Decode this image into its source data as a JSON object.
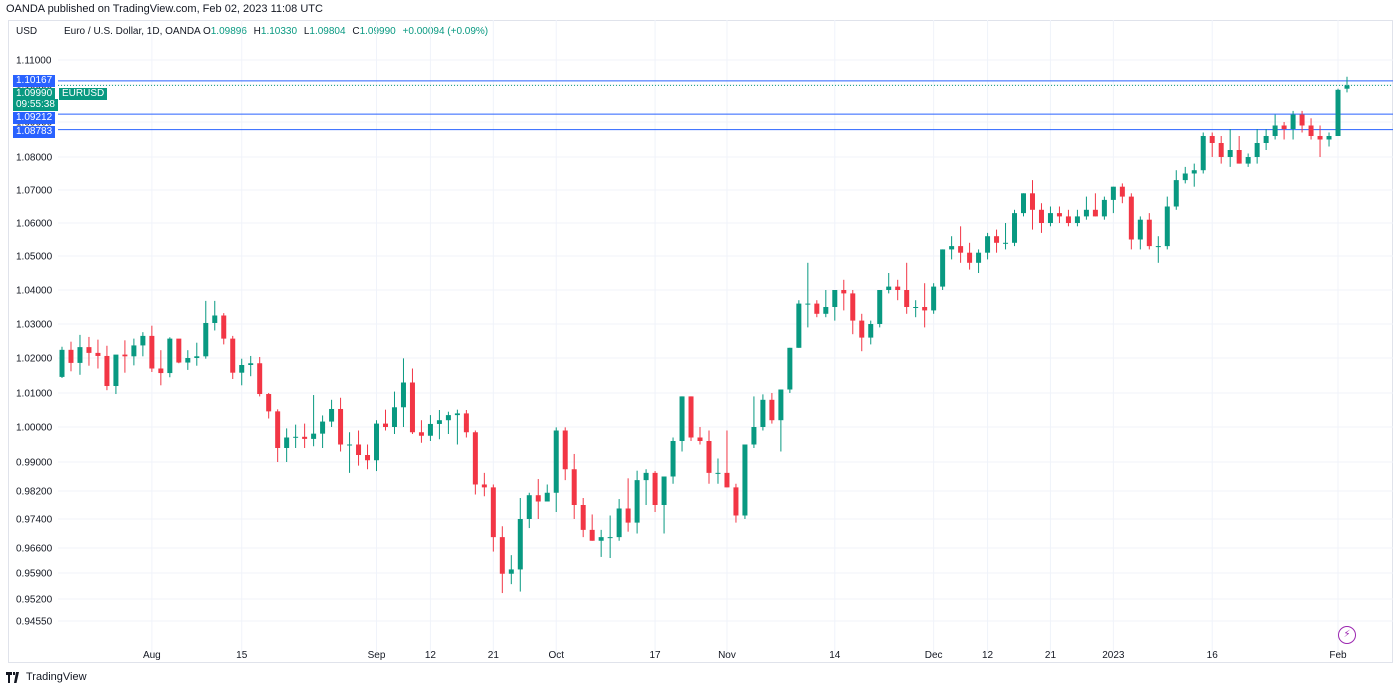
{
  "header": {
    "published": "OANDA published on TradingView.com, Feb 02, 2023 11:08 UTC",
    "currency": "USD"
  },
  "legend": {
    "symbol": "Euro / U.S. Dollar, 1D, OANDA",
    "open_k": "O",
    "open_v": "1.09896",
    "high_k": "H",
    "high_v": "1.10330",
    "low_k": "L",
    "low_v": "1.09804",
    "close_k": "C",
    "close_v": "1.09990",
    "change_v": "+0.00094 (+0.09%)"
  },
  "price_tags": {
    "level1": "1.10167",
    "current": "1.09990",
    "countdown": "09:55:38",
    "symbol_tag": "EURUSD",
    "level2": "1.09212",
    "level3": "1.08783"
  },
  "footer": {
    "brand": "TradingView"
  },
  "colors": {
    "up": "#089981",
    "down": "#f23645",
    "level_line": "#2962ff",
    "grid": "#f0f3fa"
  },
  "chart_data": {
    "type": "candlestick",
    "y_ticks": [
      "1.11000",
      "1.10000",
      "1.09000",
      "1.08000",
      "1.07000",
      "1.06000",
      "1.05000",
      "1.04000",
      "1.03000",
      "1.02000",
      "1.01000",
      "1.00000",
      "0.99000",
      "0.98200",
      "0.97400",
      "0.96600",
      "0.95900",
      "0.95200",
      "0.94550"
    ],
    "x_labels": [
      {
        "label": "Aug",
        "index": 10
      },
      {
        "label": "15",
        "index": 20
      },
      {
        "label": "Sep",
        "index": 35
      },
      {
        "label": "12",
        "index": 41
      },
      {
        "label": "21",
        "index": 48
      },
      {
        "label": "Oct",
        "index": 55
      },
      {
        "label": "17",
        "index": 66
      },
      {
        "label": "Nov",
        "index": 74
      },
      {
        "label": "14",
        "index": 86
      },
      {
        "label": "Dec",
        "index": 97
      },
      {
        "label": "12",
        "index": 103
      },
      {
        "label": "21",
        "index": 110
      },
      {
        "label": "2023",
        "index": 117
      },
      {
        "label": "16",
        "index": 128
      },
      {
        "label": "Feb",
        "index": 142
      }
    ],
    "horizontal_levels": [
      1.10167,
      1.09212,
      1.08783
    ],
    "current_price": 1.0999,
    "ohlc": [
      [
        1.0146,
        1.0233,
        1.0143,
        1.0224
      ],
      [
        1.0224,
        1.0248,
        1.0162,
        1.0186
      ],
      [
        1.0186,
        1.0268,
        1.0152,
        1.0232
      ],
      [
        1.0232,
        1.0262,
        1.0178,
        1.0215
      ],
      [
        1.0215,
        1.0254,
        1.017,
        1.0206
      ],
      [
        1.0206,
        1.0236,
        1.0108,
        1.012
      ],
      [
        1.012,
        1.0207,
        1.0097,
        1.021
      ],
      [
        1.021,
        1.0252,
        1.0158,
        1.0205
      ],
      [
        1.0205,
        1.0257,
        1.0179,
        1.0237
      ],
      [
        1.0237,
        1.0276,
        1.0205,
        1.0265
      ],
      [
        1.0265,
        1.0295,
        1.016,
        1.017
      ],
      [
        1.017,
        1.0223,
        1.0122,
        1.0157
      ],
      [
        1.0157,
        1.0261,
        1.0145,
        1.0257
      ],
      [
        1.0257,
        1.0248,
        1.0185,
        1.0187
      ],
      [
        1.0187,
        1.0223,
        1.0166,
        1.02
      ],
      [
        1.02,
        1.0245,
        1.0178,
        1.0205
      ],
      [
        1.0205,
        1.0368,
        1.0198,
        1.0303
      ],
      [
        1.0303,
        1.0368,
        1.0281,
        1.0325
      ],
      [
        1.0325,
        1.0332,
        1.024,
        1.0257
      ],
      [
        1.0257,
        1.0265,
        1.014,
        1.0158
      ],
      [
        1.0158,
        1.0198,
        1.0122,
        1.018
      ],
      [
        1.018,
        1.0206,
        1.0148,
        1.0185
      ],
      [
        1.0185,
        1.0203,
        1.009,
        1.0097
      ],
      [
        1.0097,
        1.01,
        1.0025,
        1.0046
      ],
      [
        1.0046,
        1.0052,
        0.99,
        0.994
      ],
      [
        0.994,
        0.9996,
        0.99,
        0.997
      ],
      [
        0.997,
        1.0007,
        0.994,
        0.9972
      ],
      [
        0.9972,
        1.001,
        0.994,
        0.9966
      ],
      [
        0.9966,
        1.0094,
        0.9945,
        0.9981
      ],
      [
        0.9981,
        1.0034,
        0.994,
        1.0016
      ],
      [
        1.0016,
        1.008,
        1.0,
        1.0053
      ],
      [
        1.0053,
        1.0086,
        0.993,
        0.995
      ],
      [
        0.995,
        0.9985,
        0.987,
        0.995
      ],
      [
        0.995,
        0.999,
        0.989,
        0.992
      ],
      [
        0.992,
        0.995,
        0.988,
        0.9905
      ],
      [
        0.9905,
        1.002,
        0.9875,
        1.001
      ],
      [
        1.001,
        1.0051,
        0.999,
        1.0
      ],
      [
        1.0,
        1.0104,
        0.998,
        1.0058
      ],
      [
        1.0058,
        1.0199,
        1.0,
        1.013
      ],
      [
        1.013,
        1.017,
        0.998,
        0.9985
      ],
      [
        0.9985,
        1.002,
        0.9955,
        0.9975
      ],
      [
        0.9975,
        1.0035,
        0.996,
        1.0009
      ],
      [
        1.0009,
        1.005,
        0.9965,
        1.002
      ],
      [
        1.002,
        1.0045,
        0.998,
        1.0035
      ],
      [
        1.0035,
        1.0051,
        0.995,
        1.004
      ],
      [
        1.004,
        1.005,
        0.997,
        0.9985
      ],
      [
        0.9985,
        0.999,
        0.981,
        0.9838
      ],
      [
        0.9838,
        0.987,
        0.9805,
        0.983
      ],
      [
        0.983,
        0.9838,
        0.965,
        0.969
      ],
      [
        0.969,
        0.972,
        0.9536,
        0.9588
      ],
      [
        0.9588,
        0.964,
        0.956,
        0.96
      ],
      [
        0.96,
        0.98,
        0.954,
        0.974
      ],
      [
        0.974,
        0.9815,
        0.9715,
        0.9808
      ],
      [
        0.9808,
        0.9853,
        0.974,
        0.979
      ],
      [
        0.979,
        0.9838,
        0.979,
        0.9815
      ],
      [
        0.9815,
        0.9999,
        0.976,
        0.999
      ],
      [
        0.999,
        0.9999,
        0.985,
        0.988
      ],
      [
        0.988,
        0.9923,
        0.974,
        0.978
      ],
      [
        0.978,
        0.98,
        0.969,
        0.971
      ],
      [
        0.971,
        0.9753,
        0.968,
        0.968
      ],
      [
        0.968,
        0.971,
        0.9635,
        0.969
      ],
      [
        0.969,
        0.975,
        0.9632,
        0.969
      ],
      [
        0.969,
        0.9797,
        0.968,
        0.977
      ],
      [
        0.977,
        0.9855,
        0.9705,
        0.973
      ],
      [
        0.973,
        0.9876,
        0.97,
        0.985
      ],
      [
        0.985,
        0.988,
        0.978,
        0.987
      ],
      [
        0.987,
        0.9875,
        0.976,
        0.978
      ],
      [
        0.978,
        0.986,
        0.97,
        0.986
      ],
      [
        0.986,
        0.997,
        0.984,
        0.996
      ],
      [
        0.996,
        1.009,
        0.993,
        1.009
      ],
      [
        1.009,
        1.009,
        0.996,
        0.997
      ],
      [
        0.997,
        1.0,
        0.995,
        0.996
      ],
      [
        0.996,
        0.999,
        0.984,
        0.987
      ],
      [
        0.987,
        0.991,
        0.984,
        0.987
      ],
      [
        0.987,
        0.999,
        0.983,
        0.983
      ],
      [
        0.983,
        0.984,
        0.973,
        0.975
      ],
      [
        0.975,
        0.995,
        0.974,
        0.995
      ],
      [
        0.995,
        1.009,
        0.994,
        1.0
      ],
      [
        1.0,
        1.0096,
        0.999,
        1.008
      ],
      [
        1.008,
        1.01,
        1.001,
        1.002
      ],
      [
        1.002,
        1.011,
        0.993,
        1.011
      ],
      [
        1.011,
        1.023,
        1.01,
        1.023
      ],
      [
        1.023,
        1.037,
        1.023,
        1.036
      ],
      [
        1.036,
        1.048,
        1.029,
        1.036
      ],
      [
        1.036,
        1.037,
        1.032,
        1.033
      ],
      [
        1.033,
        1.04,
        1.032,
        1.035
      ],
      [
        1.035,
        1.039,
        1.031,
        1.04
      ],
      [
        1.04,
        1.043,
        1.034,
        1.039
      ],
      [
        1.039,
        1.04,
        1.027,
        1.031
      ],
      [
        1.031,
        1.033,
        1.022,
        1.026
      ],
      [
        1.026,
        1.031,
        1.024,
        1.03
      ],
      [
        1.03,
        1.04,
        1.029,
        1.04
      ],
      [
        1.04,
        1.045,
        1.039,
        1.041
      ],
      [
        1.041,
        1.043,
        1.037,
        1.04
      ],
      [
        1.04,
        1.048,
        1.033,
        1.035
      ],
      [
        1.035,
        1.037,
        1.032,
        1.035
      ],
      [
        1.035,
        1.042,
        1.029,
        1.034
      ],
      [
        1.034,
        1.042,
        1.033,
        1.041
      ],
      [
        1.041,
        1.052,
        1.04,
        1.052
      ],
      [
        1.052,
        1.056,
        1.049,
        1.053
      ],
      [
        1.053,
        1.059,
        1.048,
        1.051
      ],
      [
        1.051,
        1.054,
        1.046,
        1.048
      ],
      [
        1.048,
        1.052,
        1.045,
        1.051
      ],
      [
        1.051,
        1.057,
        1.049,
        1.056
      ],
      [
        1.056,
        1.058,
        1.051,
        1.054
      ],
      [
        1.054,
        1.06,
        1.052,
        1.054
      ],
      [
        1.054,
        1.064,
        1.053,
        1.063
      ],
      [
        1.063,
        1.069,
        1.062,
        1.069
      ],
      [
        1.069,
        1.073,
        1.058,
        1.064
      ],
      [
        1.064,
        1.066,
        1.057,
        1.06
      ],
      [
        1.06,
        1.065,
        1.059,
        1.063
      ],
      [
        1.063,
        1.065,
        1.06,
        1.062
      ],
      [
        1.062,
        1.064,
        1.059,
        1.06
      ],
      [
        1.06,
        1.064,
        1.059,
        1.062
      ],
      [
        1.062,
        1.068,
        1.061,
        1.064
      ],
      [
        1.064,
        1.069,
        1.062,
        1.062
      ],
      [
        1.062,
        1.068,
        1.061,
        1.067
      ],
      [
        1.067,
        1.071,
        1.063,
        1.071
      ],
      [
        1.071,
        1.072,
        1.066,
        1.068
      ],
      [
        1.068,
        1.069,
        1.052,
        1.055
      ],
      [
        1.055,
        1.062,
        1.052,
        1.061
      ],
      [
        1.061,
        1.063,
        1.052,
        1.053
      ],
      [
        1.053,
        1.056,
        1.048,
        1.053
      ],
      [
        1.053,
        1.068,
        1.052,
        1.065
      ],
      [
        1.065,
        1.076,
        1.064,
        1.073
      ],
      [
        1.073,
        1.077,
        1.072,
        1.075
      ],
      [
        1.075,
        1.078,
        1.071,
        1.076
      ],
      [
        1.076,
        1.087,
        1.075,
        1.086
      ],
      [
        1.086,
        1.087,
        1.08,
        1.084
      ],
      [
        1.084,
        1.086,
        1.078,
        1.08
      ],
      [
        1.08,
        1.088,
        1.077,
        1.082
      ],
      [
        1.082,
        1.086,
        1.078,
        1.078
      ],
      [
        1.078,
        1.081,
        1.077,
        1.08
      ],
      [
        1.08,
        1.088,
        1.078,
        1.084
      ],
      [
        1.084,
        1.088,
        1.082,
        1.086
      ],
      [
        1.086,
        1.092,
        1.085,
        1.089
      ],
      [
        1.089,
        1.09,
        1.085,
        1.088
      ],
      [
        1.088,
        1.093,
        1.085,
        1.092
      ],
      [
        1.092,
        1.093,
        1.087,
        1.089
      ],
      [
        1.089,
        1.091,
        1.085,
        1.086
      ],
      [
        1.086,
        1.089,
        1.08,
        1.085
      ],
      [
        1.085,
        1.087,
        1.083,
        1.086
      ],
      [
        1.086,
        1.099,
        1.086,
        1.0987
      ],
      [
        1.099,
        1.1033,
        1.098,
        1.0999
      ]
    ]
  }
}
